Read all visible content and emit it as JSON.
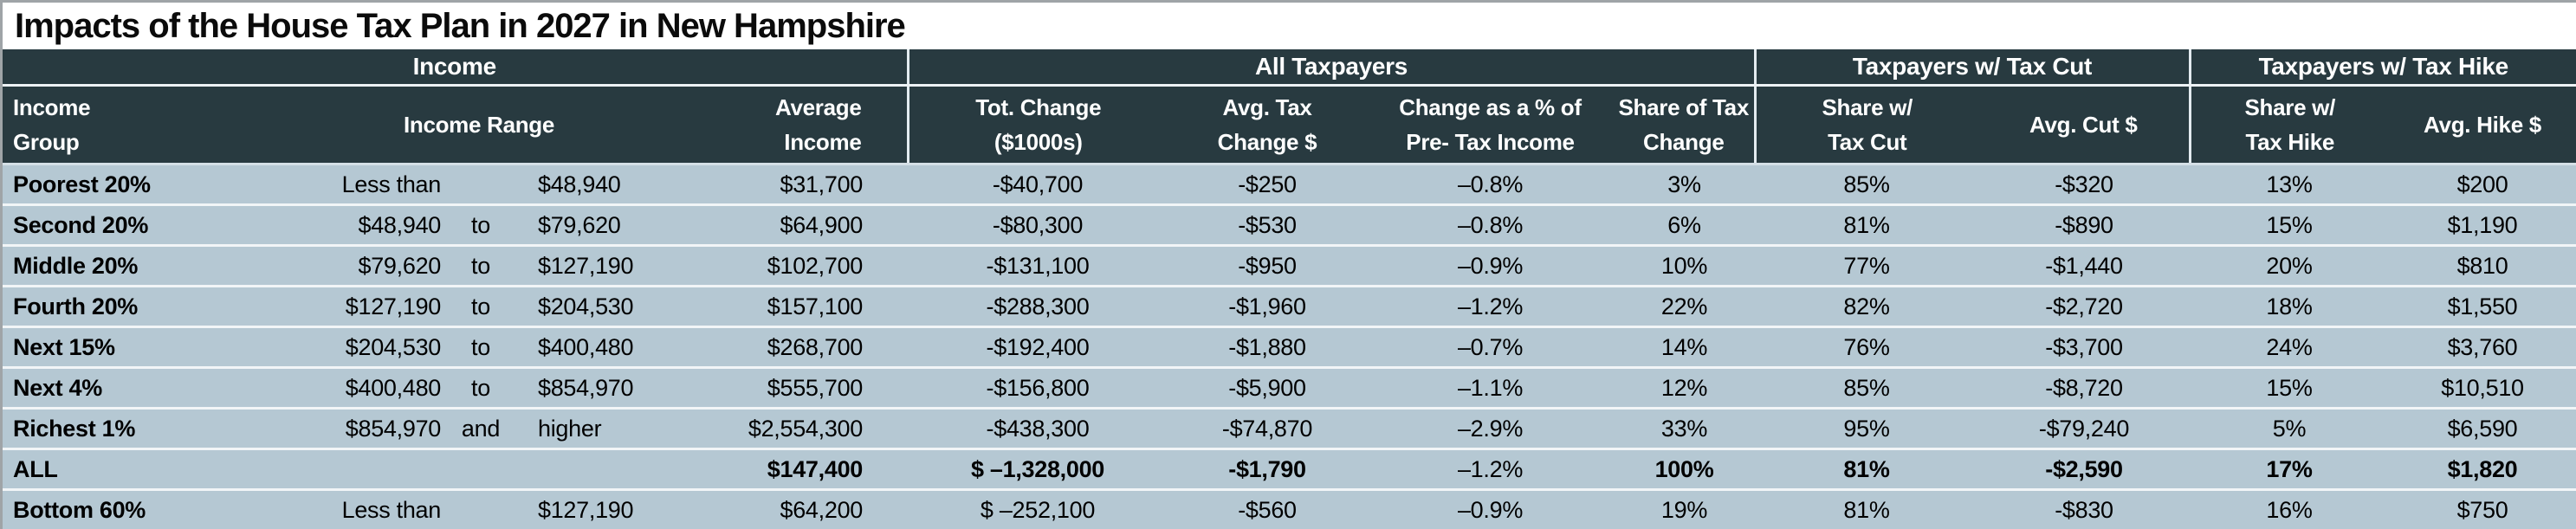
{
  "title": "Impacts of the House Tax Plan in 2027 in New Hampshire",
  "colors": {
    "header_bg": "#283A40",
    "header_text": "#FFFFFF",
    "row_bg": "#B5C8D3",
    "row_separator": "#F1F5F7",
    "group_divider": "#E3EBF0",
    "page_border": "#9FA4A7",
    "body_text": "#000000"
  },
  "chart_data": {
    "type": "table",
    "title": "Impacts of the House Tax Plan in 2027 in New Hampshire",
    "column_groups": [
      {
        "label": "Income",
        "columns": 3
      },
      {
        "label": "All Taxpayers",
        "columns": 4
      },
      {
        "label": "Taxpayers w/ Tax Cut",
        "columns": 2
      },
      {
        "label": "Taxpayers w/ Tax Hike",
        "columns": 2
      }
    ],
    "headers": {
      "income_group": "Income\nGroup",
      "income_range": "Income Range",
      "average_income": "Average\nIncome",
      "tot_change": "Tot. Change\n($1000s)",
      "avg_tax_change": "Avg. Tax\nChange $",
      "change_pct_pretax": "Change as a % of\nPre- Tax Income",
      "share_of_tax_change": "Share of Tax\nChange",
      "share_w_tax_cut": "Share w/\nTax Cut",
      "avg_cut": "Avg. Cut $",
      "share_w_tax_hike": "Share w/\nTax Hike",
      "avg_hike": "Avg. Hike $"
    },
    "rows": [
      {
        "bold": false,
        "cells": [
          "Poorest 20%",
          "Less than",
          "",
          "$48,940",
          "$31,700",
          "-$40,700",
          "-$250",
          "–0.8%",
          "3%",
          "85%",
          "-$320",
          "13%",
          "$200"
        ]
      },
      {
        "bold": false,
        "cells": [
          "Second 20%",
          "$48,940",
          "to",
          "$79,620",
          "$64,900",
          "-$80,300",
          "-$530",
          "–0.8%",
          "6%",
          "81%",
          "-$890",
          "15%",
          "$1,190"
        ]
      },
      {
        "bold": false,
        "cells": [
          "Middle 20%",
          "$79,620",
          "to",
          "$127,190",
          "$102,700",
          "-$131,100",
          "-$950",
          "–0.9%",
          "10%",
          "77%",
          "-$1,440",
          "20%",
          "$810"
        ]
      },
      {
        "bold": false,
        "cells": [
          "Fourth 20%",
          "$127,190",
          "to",
          "$204,530",
          "$157,100",
          "-$288,300",
          "-$1,960",
          "–1.2%",
          "22%",
          "82%",
          "-$2,720",
          "18%",
          "$1,550"
        ]
      },
      {
        "bold": false,
        "cells": [
          "Next 15%",
          "$204,530",
          "to",
          "$400,480",
          "$268,700",
          "-$192,400",
          "-$1,880",
          "–0.7%",
          "14%",
          "76%",
          "-$3,700",
          "24%",
          "$3,760"
        ]
      },
      {
        "bold": false,
        "cells": [
          "Next 4%",
          "$400,480",
          "to",
          "$854,970",
          "$555,700",
          "-$156,800",
          "-$5,900",
          "–1.1%",
          "12%",
          "85%",
          "-$8,720",
          "15%",
          "$10,510"
        ]
      },
      {
        "bold": false,
        "cells": [
          "Richest 1%",
          "$854,970",
          "and",
          "higher",
          "$2,554,300",
          "-$438,300",
          "-$74,870",
          "–2.9%",
          "33%",
          "95%",
          "-$79,240",
          "5%",
          "$6,590"
        ]
      },
      {
        "bold": true,
        "cells": [
          "ALL",
          "",
          "",
          "",
          "$147,400",
          "$ –1,328,000",
          "-$1,790",
          "–1.2%",
          "100%",
          "81%",
          "-$2,590",
          "17%",
          "$1,820"
        ]
      },
      {
        "bold": false,
        "cells": [
          "Bottom 60%",
          "Less than",
          "",
          "$127,190",
          "$64,200",
          "$ –252,100",
          "-$560",
          "–0.9%",
          "19%",
          "81%",
          "-$830",
          "16%",
          "$750"
        ]
      }
    ]
  }
}
